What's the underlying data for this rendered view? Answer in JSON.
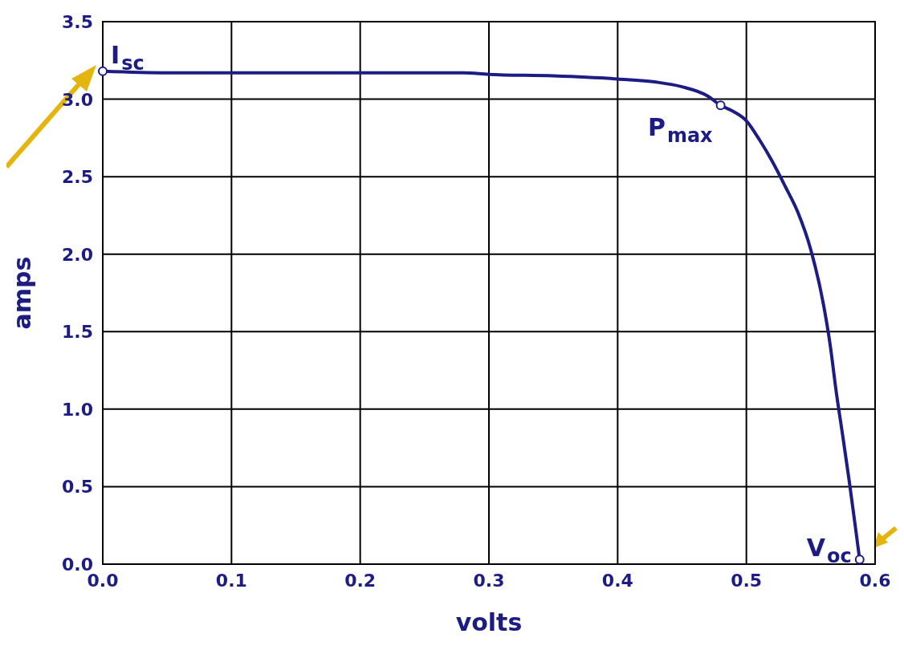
{
  "chart_data": {
    "type": "line",
    "xlabel": "volts",
    "ylabel": "amps",
    "xlim": [
      0,
      0.6
    ],
    "xticks": [
      {
        "value": 0,
        "label": "0.0"
      },
      0.1,
      0.2,
      0.3,
      0.4,
      0.5,
      0.6
    ],
    "ylim": [
      0,
      3.5
    ],
    "yticks": [
      {
        "value": 0,
        "label": "0.0"
      },
      0.5,
      {
        "value": 1,
        "label": "1.0"
      },
      1.5,
      {
        "value": 2,
        "label": "2.0"
      },
      2.5,
      {
        "value": 3,
        "label": "3.0"
      },
      3.5
    ],
    "grid": true,
    "line_style": "solid",
    "marker": "none",
    "series": [
      {
        "color": "#1c1c84",
        "x": [
          0,
          0.05,
          0.1,
          0.15,
          0.2,
          0.25,
          0.28,
          0.3,
          0.35,
          0.4,
          0.43,
          0.45,
          0.47,
          0.48,
          0.49,
          0.5,
          0.51,
          0.52,
          0.53,
          0.54,
          0.55,
          0.56,
          0.565,
          0.57,
          0.575,
          0.58,
          0.585,
          0.588
        ],
        "values": [
          3.18,
          3.17,
          3.17,
          3.17,
          3.17,
          3.17,
          3.17,
          3.16,
          3.15,
          3.13,
          3.11,
          3.08,
          3.02,
          2.96,
          2.92,
          2.86,
          2.74,
          2.6,
          2.44,
          2.27,
          2.03,
          1.67,
          1.42,
          1.1,
          0.82,
          0.53,
          0.22,
          0.03
        ]
      }
    ],
    "annotations": [
      {
        "text": "I$_{sc}$",
        "x": 0,
        "y": 3.18
      },
      {
        "text": "P$_{max}$",
        "x": 0.48,
        "y": 2.96
      },
      {
        "text": "V$_{oc}$",
        "x": 0.588,
        "y": 0.03
      }
    ]
  }
}
